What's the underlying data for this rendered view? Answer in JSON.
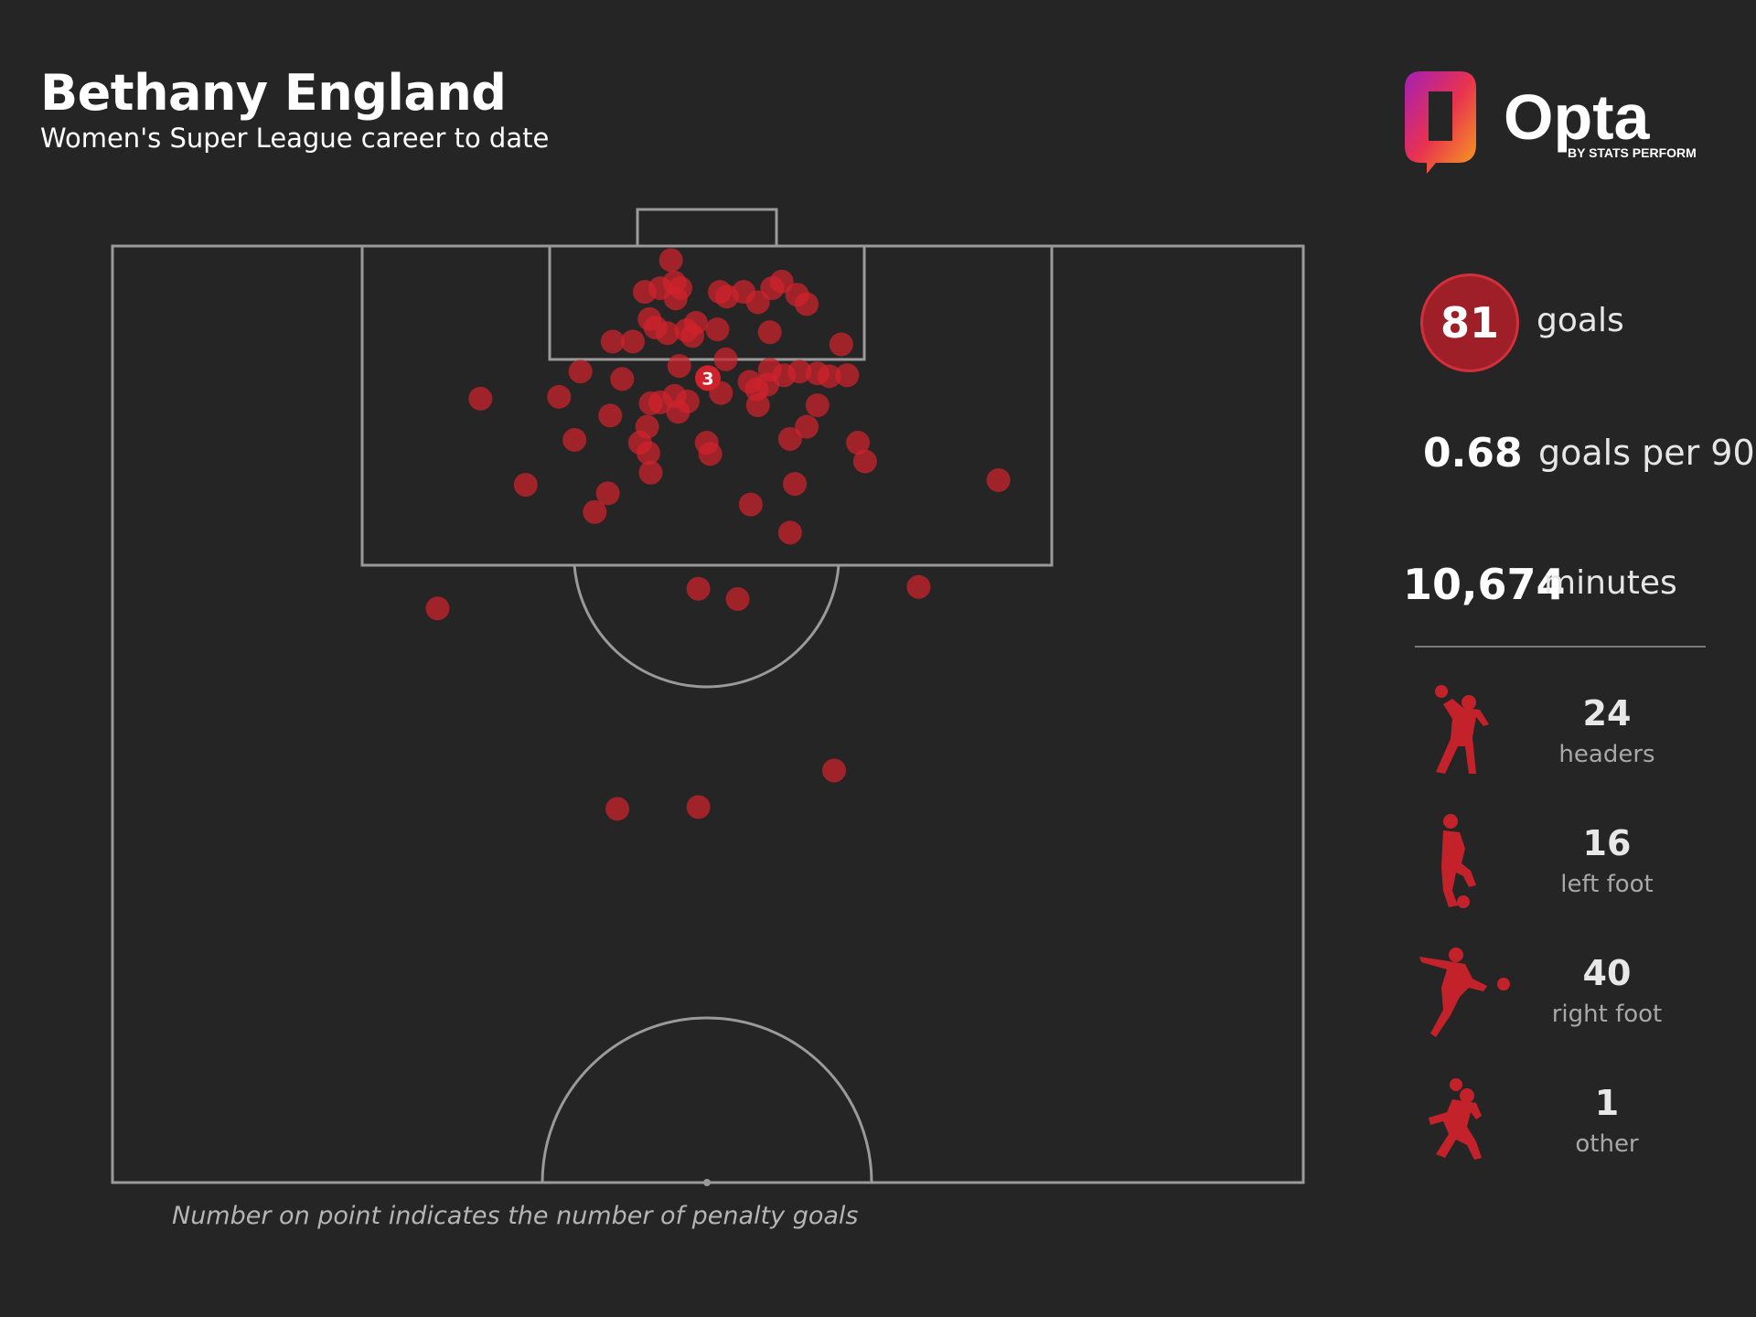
{
  "header": {
    "title": "Bethany England",
    "subtitle": "Women's Super League career to date"
  },
  "logo": {
    "brand": "Opta",
    "tagline": "BY STATS PERFORM"
  },
  "stats": {
    "goals_value": "81",
    "goals_label": "goals",
    "gp90_value": "0.68",
    "gp90_label": "goals per 90",
    "minutes_value": "10,674",
    "minutes_label": "minutes"
  },
  "body_types": [
    {
      "count": "24",
      "label": "headers",
      "icon": "header-player-icon"
    },
    {
      "count": "16",
      "label": "left foot",
      "icon": "left-foot-player-icon"
    },
    {
      "count": "40",
      "label": "right foot",
      "icon": "right-foot-player-icon"
    },
    {
      "count": "1",
      "label": "other",
      "icon": "other-player-icon"
    }
  ],
  "footnote": "Number on point indicates the number of penalty goals",
  "colors": {
    "background": "#252525",
    "goal_dot": "#d0222c",
    "badge": "#9e1f28",
    "pitch_lines": "#9a9a9a"
  },
  "chart_data": {
    "type": "scatter",
    "description_units": "shot origin on half-pitch, x = 0..100 across width (left to right), y = 0..100 length from goal line down to halfway line",
    "penalty_point": {
      "x": 50,
      "y": 14.1,
      "count": 3,
      "label": "3"
    },
    "points": [
      {
        "x": 46.9,
        "y": 1.5
      },
      {
        "x": 47.2,
        "y": 3.9
      },
      {
        "x": 47.7,
        "y": 4.5
      },
      {
        "x": 46.0,
        "y": 4.5
      },
      {
        "x": 44.7,
        "y": 4.9
      },
      {
        "x": 47.3,
        "y": 5.6
      },
      {
        "x": 51.0,
        "y": 4.9
      },
      {
        "x": 51.6,
        "y": 5.4
      },
      {
        "x": 53.0,
        "y": 4.9
      },
      {
        "x": 55.4,
        "y": 4.5
      },
      {
        "x": 56.2,
        "y": 3.8
      },
      {
        "x": 57.5,
        "y": 5.2
      },
      {
        "x": 54.2,
        "y": 6.0
      },
      {
        "x": 58.3,
        "y": 6.2
      },
      {
        "x": 45.1,
        "y": 7.8
      },
      {
        "x": 45.6,
        "y": 8.7
      },
      {
        "x": 46.6,
        "y": 9.3
      },
      {
        "x": 48.7,
        "y": 9.6
      },
      {
        "x": 49.0,
        "y": 8.2
      },
      {
        "x": 48.2,
        "y": 9.0
      },
      {
        "x": 50.8,
        "y": 8.9
      },
      {
        "x": 55.2,
        "y": 9.2
      },
      {
        "x": 42.0,
        "y": 10.2
      },
      {
        "x": 43.7,
        "y": 10.2
      },
      {
        "x": 61.2,
        "y": 10.5
      },
      {
        "x": 47.6,
        "y": 12.8
      },
      {
        "x": 51.5,
        "y": 12.1
      },
      {
        "x": 39.3,
        "y": 13.4
      },
      {
        "x": 42.8,
        "y": 14.2
      },
      {
        "x": 55.2,
        "y": 13.2
      },
      {
        "x": 56.4,
        "y": 13.8
      },
      {
        "x": 57.7,
        "y": 13.4
      },
      {
        "x": 59.2,
        "y": 13.6
      },
      {
        "x": 60.2,
        "y": 13.9
      },
      {
        "x": 61.7,
        "y": 13.8
      },
      {
        "x": 53.5,
        "y": 14.5
      },
      {
        "x": 54.1,
        "y": 15.3
      },
      {
        "x": 55.0,
        "y": 14.8
      },
      {
        "x": 51.1,
        "y": 15.7
      },
      {
        "x": 47.2,
        "y": 16.0
      },
      {
        "x": 48.3,
        "y": 16.6
      },
      {
        "x": 37.5,
        "y": 16.1
      },
      {
        "x": 45.2,
        "y": 16.8
      },
      {
        "x": 46.0,
        "y": 16.7
      },
      {
        "x": 47.5,
        "y": 17.7
      },
      {
        "x": 54.2,
        "y": 17.0
      },
      {
        "x": 59.2,
        "y": 17.0
      },
      {
        "x": 30.9,
        "y": 16.3
      },
      {
        "x": 41.8,
        "y": 18.1
      },
      {
        "x": 44.9,
        "y": 19.3
      },
      {
        "x": 58.3,
        "y": 19.3
      },
      {
        "x": 38.8,
        "y": 20.7
      },
      {
        "x": 44.3,
        "y": 21.0
      },
      {
        "x": 45.0,
        "y": 22.1
      },
      {
        "x": 49.9,
        "y": 21.0
      },
      {
        "x": 50.2,
        "y": 22.2
      },
      {
        "x": 56.9,
        "y": 20.6
      },
      {
        "x": 62.6,
        "y": 21.0
      },
      {
        "x": 63.2,
        "y": 23.0
      },
      {
        "x": 45.2,
        "y": 24.2
      },
      {
        "x": 34.7,
        "y": 25.5
      },
      {
        "x": 41.6,
        "y": 26.4
      },
      {
        "x": 40.5,
        "y": 28.4
      },
      {
        "x": 53.6,
        "y": 27.6
      },
      {
        "x": 57.3,
        "y": 25.4
      },
      {
        "x": 74.4,
        "y": 25.0
      },
      {
        "x": 56.9,
        "y": 30.6
      },
      {
        "x": 49.2,
        "y": 36.6
      },
      {
        "x": 52.5,
        "y": 37.7
      },
      {
        "x": 27.3,
        "y": 38.7
      },
      {
        "x": 67.7,
        "y": 36.4
      },
      {
        "x": 42.4,
        "y": 60.1
      },
      {
        "x": 49.2,
        "y": 59.9
      },
      {
        "x": 60.6,
        "y": 56.0
      }
    ]
  }
}
